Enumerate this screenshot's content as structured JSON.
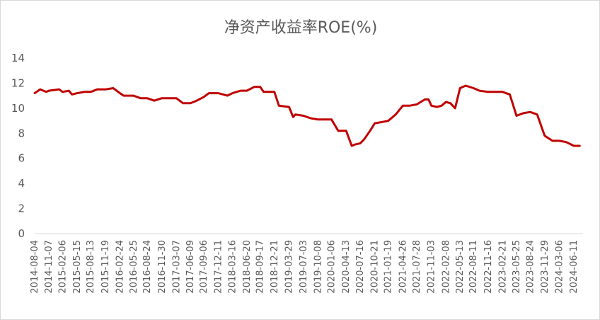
{
  "chart_data": {
    "type": "line",
    "title": "净资产收益率ROE(%)",
    "xlabel": "",
    "ylabel": "",
    "ylim": [
      0,
      14
    ],
    "yticks": [
      0,
      2,
      4,
      6,
      8,
      10,
      12,
      14
    ],
    "grid": false,
    "legend": "none",
    "line_color": "#c00000",
    "xticks": [
      "2014-08-04",
      "2014-11-07",
      "2015-02-06",
      "2015-05-15",
      "2015-08-13",
      "2015-11-19",
      "2016-02-24",
      "2016-05-25",
      "2016-08-24",
      "2016-11-30",
      "2017-03-07",
      "2017-06-09",
      "2017-09-06",
      "2017-12-11",
      "2018-03-16",
      "2018-06-20",
      "2018-09-17",
      "2018-12-21",
      "2019-03-29",
      "2019-07-03",
      "2019-10-08",
      "2020-01-06",
      "2020-04-13",
      "2020-07-16",
      "2020-10-21",
      "2021-01-19",
      "2021-04-26",
      "2021-07-28",
      "2021-11-03",
      "2022-02-08",
      "2022-05-13",
      "2022-08-11",
      "2022-11-16",
      "2023-02-21",
      "2023-05-25",
      "2023-08-24",
      "2023-11-29",
      "2024-03-06",
      "2024-06-11"
    ],
    "series": [
      {
        "x": [
          "2014-08-04",
          "2014-09-10",
          "2014-10-20",
          "2014-11-07",
          "2015-01-15",
          "2015-02-06",
          "2015-03-20",
          "2015-04-10",
          "2015-05-15",
          "2015-07-01",
          "2015-08-13",
          "2015-09-25",
          "2015-11-19",
          "2016-01-10",
          "2016-02-24",
          "2016-03-20",
          "2016-05-25",
          "2016-07-10",
          "2016-08-24",
          "2016-10-10",
          "2016-11-30",
          "2017-01-10",
          "2017-03-07",
          "2017-04-20",
          "2017-06-09",
          "2017-07-20",
          "2017-09-06",
          "2017-10-10",
          "2017-12-11",
          "2018-02-10",
          "2018-03-16",
          "2018-05-10",
          "2018-06-20",
          "2018-08-10",
          "2018-09-17",
          "2018-10-10",
          "2018-12-21",
          "2019-01-20",
          "2019-03-29",
          "2019-04-25",
          "2019-05-10",
          "2019-07-03",
          "2019-08-20",
          "2019-10-08",
          "2019-11-20",
          "2020-01-06",
          "2020-02-20",
          "2020-04-13",
          "2020-05-20",
          "2020-06-10",
          "2020-07-16",
          "2020-08-10",
          "2020-09-20",
          "2020-10-21",
          "2020-12-10",
          "2021-01-19",
          "2021-03-10",
          "2021-04-26",
          "2021-05-10",
          "2021-06-10",
          "2021-07-28",
          "2021-09-20",
          "2021-10-15",
          "2021-11-03",
          "2021-12-10",
          "2022-01-10",
          "2022-02-08",
          "2022-03-10",
          "2022-04-10",
          "2022-05-13",
          "2022-06-20",
          "2022-08-11",
          "2022-09-20",
          "2022-11-16",
          "2022-12-20",
          "2023-02-21",
          "2023-04-10",
          "2023-05-25",
          "2023-07-10",
          "2023-08-24",
          "2023-10-10",
          "2023-11-29",
          "2024-01-20",
          "2024-03-06",
          "2024-04-20",
          "2024-06-11",
          "2024-07-20"
        ],
        "values": [
          11.2,
          11.5,
          11.3,
          11.4,
          11.5,
          11.3,
          11.4,
          11.1,
          11.2,
          11.3,
          11.3,
          11.5,
          11.5,
          11.6,
          11.2,
          11.0,
          11.0,
          10.8,
          10.8,
          10.6,
          10.8,
          10.8,
          10.8,
          10.4,
          10.4,
          10.6,
          10.9,
          11.2,
          11.2,
          11.0,
          11.2,
          11.4,
          11.4,
          11.7,
          11.7,
          11.3,
          11.3,
          10.2,
          10.1,
          9.3,
          9.5,
          9.4,
          9.2,
          9.1,
          9.1,
          9.1,
          8.2,
          8.2,
          7.0,
          7.1,
          7.2,
          7.5,
          8.2,
          8.8,
          8.9,
          9.0,
          9.5,
          10.2,
          10.2,
          10.2,
          10.3,
          10.7,
          10.7,
          10.2,
          10.1,
          10.2,
          10.5,
          10.4,
          10.0,
          11.6,
          11.8,
          11.6,
          11.4,
          11.3,
          11.3,
          11.3,
          11.1,
          9.4,
          9.6,
          9.7,
          9.5,
          7.8,
          7.4,
          7.4,
          7.3,
          7.0,
          7.0
        ]
      }
    ]
  }
}
